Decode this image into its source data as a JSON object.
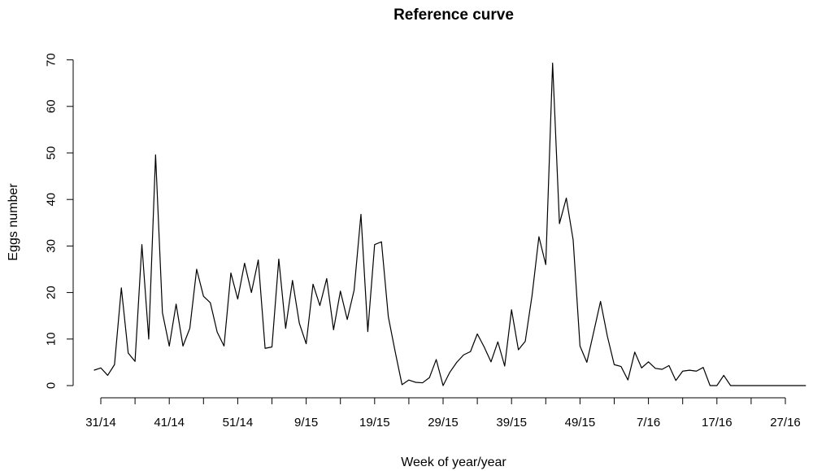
{
  "chart_data": {
    "type": "line",
    "title": "Reference curve",
    "xlabel": "Week of year/year",
    "ylabel": "Eggs number",
    "ylim": [
      0,
      70
    ],
    "y_ticks": [
      0,
      10,
      20,
      30,
      40,
      50,
      60,
      70
    ],
    "x_ticks": [
      {
        "label": "31/14",
        "index": 0
      },
      {
        "label": "41/14",
        "index": 10
      },
      {
        "label": "51/14",
        "index": 20
      },
      {
        "label": "9/15",
        "index": 30
      },
      {
        "label": "19/15",
        "index": 40
      },
      {
        "label": "29/15",
        "index": 50
      },
      {
        "label": "39/15",
        "index": 60
      },
      {
        "label": "49/15",
        "index": 70
      },
      {
        "label": "7/16",
        "index": 80
      },
      {
        "label": "17/16",
        "index": 90
      },
      {
        "label": "27/16",
        "index": 100
      }
    ],
    "x_tick_indices": [
      0,
      5,
      10,
      15,
      20,
      25,
      30,
      35,
      40,
      45,
      50,
      55,
      60,
      65,
      70,
      75,
      80,
      85,
      90,
      95,
      100
    ],
    "x_first_index": -1,
    "grid": false,
    "series": [
      {
        "color": "#000000",
        "values": [
          3.3,
          3.8,
          2.2,
          4.5,
          21.0,
          7.0,
          5.2,
          30.3,
          10.0,
          49.6,
          15.7,
          8.5,
          17.5,
          8.5,
          12.3,
          25.0,
          19.2,
          17.8,
          11.5,
          8.5,
          24.2,
          18.6,
          26.3,
          20.0,
          27.0,
          8.0,
          8.3,
          27.2,
          12.3,
          22.6,
          13.4,
          9.0,
          21.8,
          17.2,
          23.0,
          12.0,
          20.3,
          14.2,
          20.5,
          36.8,
          11.6,
          30.3,
          30.9,
          14.8,
          7.3,
          0.2,
          1.2,
          0.7,
          0.6,
          1.7,
          5.6,
          0.0,
          2.9,
          5.0,
          6.6,
          7.3,
          11.1,
          8.3,
          5.1,
          9.4,
          4.2,
          16.3,
          7.7,
          9.5,
          19.4,
          32.0,
          26.0,
          69.3,
          34.8,
          40.3,
          31.3,
          8.5,
          5.0,
          11.5,
          18.1,
          10.6,
          4.5,
          4.1,
          1.2,
          7.2,
          3.8,
          5.1,
          3.7,
          3.5,
          4.3,
          1.1,
          3.1,
          3.3,
          3.1,
          3.9,
          0.0,
          0.0,
          2.2,
          0.0,
          0.0,
          0.0,
          0.0,
          0.0,
          0.0,
          0.0,
          0.0,
          0.0,
          0.0,
          0.0,
          0.0
        ]
      }
    ]
  }
}
